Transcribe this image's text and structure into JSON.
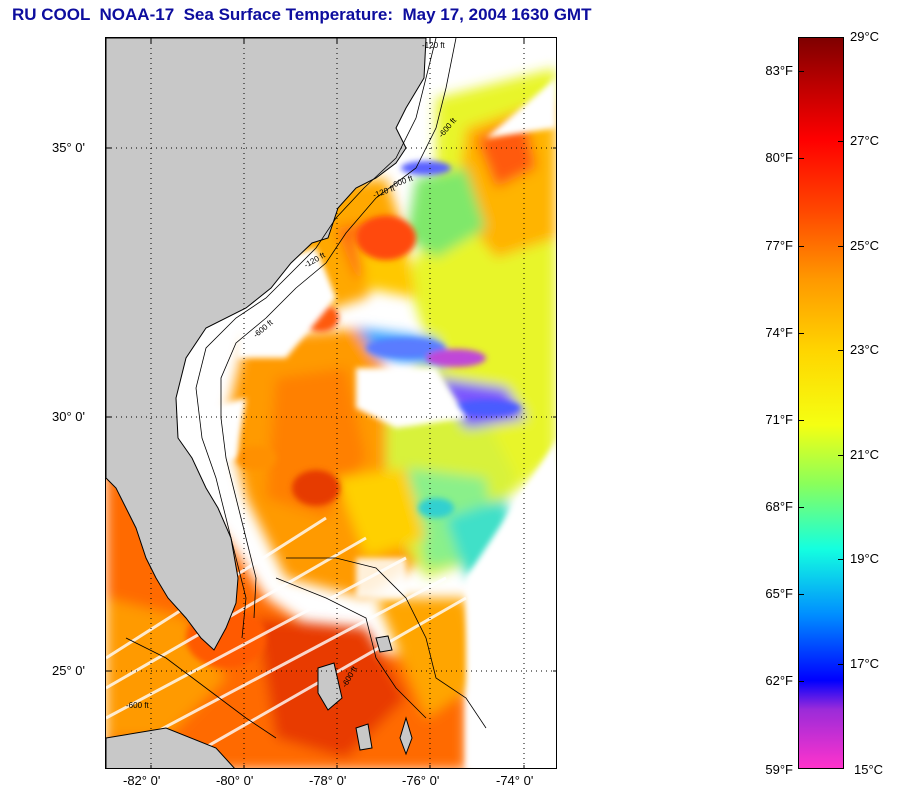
{
  "title": "RU COOL  NOAA-17  Sea Surface Temperature:  May 17, 2004 1630 GMT",
  "map": {
    "lat_labels": [
      "35° 0'",
      "30° 0'",
      "25° 0'"
    ],
    "lon_labels": [
      "-82° 0'",
      "-80° 0'",
      "-78° 0'",
      "-76° 0'",
      "-74° 0'"
    ],
    "contour_labels": [
      "-120 ft",
      "-600 ft",
      "-120 ft",
      "-600 ft",
      "-120 ft",
      "-600 ft",
      "-600 ft",
      "-600 ft"
    ],
    "colors": {
      "land": "#c8c8c8",
      "cloud": "#ffffff",
      "grid": "#000000"
    }
  },
  "colorbar": {
    "celsius_ticks": [
      "29°C",
      "27°C",
      "25°C",
      "23°C",
      "21°C",
      "19°C",
      "17°C",
      "15°C"
    ],
    "fahrenheit_ticks": [
      "83°F",
      "80°F",
      "77°F",
      "74°F",
      "71°F",
      "68°F",
      "65°F",
      "62°F",
      "59°F"
    ]
  }
}
